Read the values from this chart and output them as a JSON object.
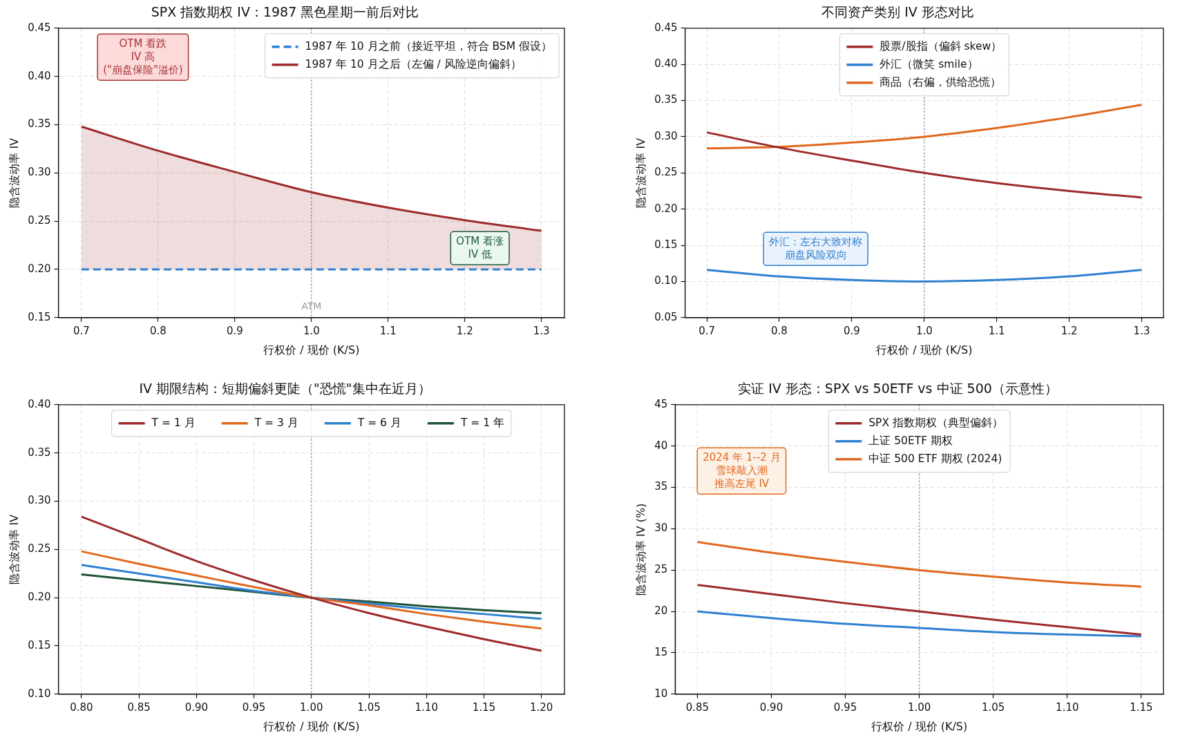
{
  "chart_data": [
    {
      "type": "line",
      "title": "SPX 指数期权 IV：1987 黑色星期一前后对比",
      "xlabel": "行权价 / 现价 (K/S)",
      "ylabel": "隐含波动率 IV",
      "x": [
        0.7,
        0.8,
        0.9,
        1.0,
        1.1,
        1.2,
        1.3
      ],
      "series": [
        {
          "name": "1987 年 10 月之前（接近平坦，符合 BSM 假设）",
          "color": "#2f80d1",
          "line_style": "dashed",
          "values": [
            0.2,
            0.2,
            0.2,
            0.2,
            0.2,
            0.2,
            0.2
          ]
        },
        {
          "name": "1987 年 10 月之后（左偏 / 风险逆向偏斜）",
          "color": "#9e2a2b",
          "values": [
            0.348,
            0.323,
            0.301,
            0.28,
            0.264,
            0.251,
            0.24
          ],
          "lower": [
            0.2,
            0.2,
            0.2,
            0.2,
            0.2,
            0.2,
            0.2
          ],
          "upper": [
            0.348,
            0.323,
            0.301,
            0.28,
            0.264,
            0.251,
            0.24
          ]
        }
      ],
      "xlim": [
        0.67,
        1.33
      ],
      "ylim": [
        0.15,
        0.45
      ],
      "xticks": [
        0.7,
        0.8,
        0.9,
        {
          "value": 1.0,
          "label": "1.0"
        },
        1.1,
        1.2,
        1.3
      ],
      "yticks": [
        0.15,
        {
          "value": 0.2,
          "label": "0.20"
        },
        0.25,
        {
          "value": 0.3,
          "label": "0.30"
        },
        0.35,
        {
          "value": 0.4,
          "label": "0.40"
        },
        0.45
      ],
      "grid": true,
      "legend": "top right",
      "ref_lines": [
        {
          "axis": "x",
          "value": 1.0,
          "label": "ATM",
          "color": "#999999",
          "line_style": "dotted"
        }
      ],
      "annotations": [
        "OTM 看跌\nIV 高\n(\"崩盘保险\"溢价)",
        "OTM 看涨\nIV 低"
      ]
    },
    {
      "type": "line",
      "title": "不同资产类别 IV 形态对比",
      "xlabel": "行权价 / 现价 (K/S)",
      "ylabel": "隐含波动率 IV",
      "x": [
        0.7,
        0.8,
        0.9,
        1.0,
        1.1,
        1.2,
        1.3
      ],
      "series": [
        {
          "name": "股票/股指（偏斜 skew）",
          "color": "#9e2a2b",
          "values": [
            0.306,
            0.285,
            0.267,
            0.25,
            0.236,
            0.225,
            0.216
          ]
        },
        {
          "name": "外汇（微笑 smile）",
          "color": "#2f80d1",
          "values": [
            0.116,
            0.107,
            0.102,
            0.1,
            0.102,
            0.107,
            0.116
          ]
        },
        {
          "name": "商品（右偏，供给恐慌）",
          "color": "#e0681e",
          "values": [
            0.284,
            0.286,
            0.292,
            0.3,
            0.312,
            0.327,
            0.344
          ]
        }
      ],
      "xlim": [
        0.67,
        1.33
      ],
      "ylim": [
        0.05,
        0.45
      ],
      "xticks": [
        0.7,
        0.8,
        0.9,
        {
          "value": 1.0,
          "label": "1.0"
        },
        1.1,
        1.2,
        1.3
      ],
      "yticks": [
        0.05,
        {
          "value": 0.1,
          "label": "0.10"
        },
        0.15,
        {
          "value": 0.2,
          "label": "0.20"
        },
        0.25,
        {
          "value": 0.3,
          "label": "0.30"
        },
        0.35,
        {
          "value": 0.4,
          "label": "0.40"
        },
        0.45
      ],
      "grid": true,
      "legend": "top",
      "ref_lines": [
        {
          "axis": "x",
          "value": 1.0,
          "color": "#999999",
          "line_style": "dotted"
        }
      ],
      "annotations": [
        "外汇：左右大致对称崩盘风险双向"
      ]
    },
    {
      "type": "line",
      "title": "IV 期限结构：短期偏斜更陡（\"恐慌\"集中在近月）",
      "xlabel": "行权价 / 现价 (K/S)",
      "ylabel": "隐含波动率 IV",
      "x": [
        0.8,
        0.85,
        0.9,
        0.95,
        1.0,
        1.05,
        1.1,
        1.15,
        1.2
      ],
      "series": [
        {
          "name": "T = 1 月",
          "color": "#9e2a2b",
          "values": [
            0.284,
            0.261,
            0.238,
            0.218,
            0.2,
            0.184,
            0.17,
            0.157,
            0.145
          ]
        },
        {
          "name": "T = 3 月",
          "color": "#e0681e",
          "values": [
            0.248,
            0.235,
            0.223,
            0.211,
            0.2,
            0.192,
            0.183,
            0.175,
            0.168
          ]
        },
        {
          "name": "T = 6 月",
          "color": "#2f80d1",
          "values": [
            0.234,
            0.225,
            0.216,
            0.207,
            0.2,
            0.194,
            0.188,
            0.183,
            0.178
          ]
        },
        {
          "name": "T = 1 年",
          "color": "#1f5438",
          "values": [
            0.224,
            0.218,
            0.212,
            0.206,
            0.2,
            0.196,
            0.191,
            0.187,
            0.184
          ]
        }
      ],
      "xlim": [
        0.78,
        1.22
      ],
      "ylim": [
        0.1,
        0.4
      ],
      "xticks": [
        {
          "value": 0.8,
          "label": "0.80"
        },
        0.85,
        {
          "value": 0.9,
          "label": "0.90"
        },
        0.95,
        {
          "value": 1.0,
          "label": "1.00"
        },
        1.05,
        {
          "value": 1.1,
          "label": "1.10"
        },
        1.15,
        {
          "value": 1.2,
          "label": "1.20"
        }
      ],
      "yticks": [
        {
          "value": 0.1,
          "label": "0.10"
        },
        0.15,
        {
          "value": 0.2,
          "label": "0.20"
        },
        0.25,
        {
          "value": 0.3,
          "label": "0.30"
        },
        0.35,
        {
          "value": 0.4,
          "label": "0.40"
        }
      ],
      "grid": true,
      "legend": "top",
      "ref_lines": [
        {
          "axis": "x",
          "value": 1.0,
          "color": "#999999",
          "line_style": "dotted"
        }
      ]
    },
    {
      "type": "line",
      "title": "实证 IV 形态：SPX vs 50ETF vs 中证 500（示意性）",
      "xlabel": "行权价 / 现价 (K/S)",
      "ylabel": "隐含波动率 IV (%)",
      "x": [
        0.85,
        0.9,
        0.95,
        1.0,
        1.05,
        1.1,
        1.15
      ],
      "series": [
        {
          "name": "SPX 指数期权（典型偏斜）",
          "color": "#9e2a2b",
          "values": [
            23.2,
            22.1,
            21.0,
            20.0,
            19.0,
            18.1,
            17.2
          ]
        },
        {
          "name": "上证 50ETF 期权",
          "color": "#2f80d1",
          "values": [
            20.0,
            19.2,
            18.5,
            18.0,
            17.5,
            17.2,
            17.0
          ]
        },
        {
          "name": "中证 500 ETF 期权 (2024)",
          "color": "#e0681e",
          "values": [
            28.4,
            27.1,
            26.0,
            25.0,
            24.2,
            23.5,
            23.0
          ]
        }
      ],
      "xlim": [
        0.835,
        1.165
      ],
      "ylim": [
        10,
        45
      ],
      "xticks": [
        0.85,
        {
          "value": 0.9,
          "label": "0.90"
        },
        0.95,
        {
          "value": 1.0,
          "label": "1.00"
        },
        1.05,
        {
          "value": 1.1,
          "label": "1.10"
        },
        1.15
      ],
      "yticks": [
        10,
        15,
        20,
        25,
        30,
        35,
        40,
        45
      ],
      "grid": true,
      "legend": "top",
      "ref_lines": [
        {
          "axis": "x",
          "value": 1.0,
          "color": "#999999",
          "line_style": "dotted"
        }
      ],
      "annotations": [
        "2024 年 1--2 月雪球敲入潮推高左尾 IV"
      ]
    }
  ]
}
